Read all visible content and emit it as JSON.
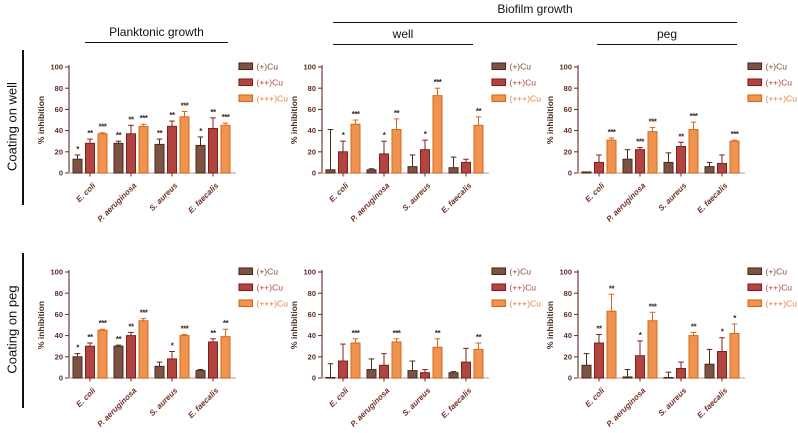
{
  "page": {
    "background": "#ffffff"
  },
  "headers": {
    "biofilm": "Biofilm growth",
    "planktonic": "Planktonic growth",
    "well": "well",
    "peg": "peg"
  },
  "row_labels": {
    "top": "Coating on well",
    "bottom": "Coating on peg"
  },
  "legend": {
    "items": [
      {
        "label": "(+)Cu",
        "fill": "#7d5242",
        "stroke": "#4a2a1c",
        "text_color": "#7d4936"
      },
      {
        "label": "(++)Cu",
        "fill": "#b24440",
        "stroke": "#7e211c",
        "text_color": "#b1433a"
      },
      {
        "label": "(+++)Cu",
        "fill": "#f0934e",
        "stroke": "#d2691e",
        "text_color": "#e2813f"
      }
    ]
  },
  "axis_style": {
    "axis_color": "#5e2c23",
    "baseline_color": "#cfaaa4",
    "tick_text_color": "#5e2c23",
    "ylabel_color": "#4f2a1f",
    "category_color": "#703326",
    "star_color": "#3a2a22"
  },
  "chart_data": [
    {
      "type": "bar",
      "coating": "Coating on well",
      "condition": "Planktonic growth",
      "ylabel": "% inhibition",
      "ylim": [
        0,
        100
      ],
      "yticks": [
        0,
        20,
        40,
        60,
        80,
        100
      ],
      "categories": [
        "E. coli",
        "P. aeruginosa",
        "S. aureus",
        "E. faecalis"
      ],
      "series": [
        {
          "name": "(+)Cu",
          "values": [
            13,
            28,
            27,
            26
          ],
          "errors": [
            4,
            2,
            5,
            8
          ],
          "sig": [
            "*",
            "**",
            "**",
            "*"
          ]
        },
        {
          "name": "(++)Cu",
          "values": [
            28,
            37,
            44,
            42
          ],
          "errors": [
            4,
            8,
            5,
            10
          ],
          "sig": [
            "**",
            "**",
            "**",
            "**"
          ]
        },
        {
          "name": "(+++)Cu",
          "values": [
            37,
            44,
            53,
            45
          ],
          "errors": [
            1,
            2,
            5,
            2
          ],
          "sig": [
            "***",
            "***",
            "***",
            "***"
          ]
        }
      ]
    },
    {
      "type": "bar",
      "coating": "Coating on well",
      "condition": "Biofilm growth - well",
      "ylabel": "% inhibition",
      "ylim": [
        0,
        100
      ],
      "yticks": [
        0,
        20,
        40,
        60,
        80,
        100
      ],
      "categories": [
        "E. coli",
        "P. aeruginosa",
        "S. aureus",
        "E. faecalis"
      ],
      "series": [
        {
          "name": "(+)Cu",
          "values": [
            3,
            3,
            6,
            5
          ],
          "errors": [
            38,
            1,
            11,
            10
          ],
          "sig": [
            "",
            "",
            "",
            ""
          ]
        },
        {
          "name": "(++)Cu",
          "values": [
            20,
            18,
            22,
            10
          ],
          "errors": [
            10,
            12,
            9,
            3
          ],
          "sig": [
            "*",
            "*",
            "*",
            ""
          ]
        },
        {
          "name": "(+++)Cu",
          "values": [
            46,
            41,
            73,
            45
          ],
          "errors": [
            4,
            10,
            7,
            8
          ],
          "sig": [
            "***",
            "**",
            "***",
            "**"
          ]
        }
      ]
    },
    {
      "type": "bar",
      "coating": "Coating on well",
      "condition": "Biofilm growth - peg",
      "ylabel": "% inhibition",
      "ylim": [
        0,
        100
      ],
      "yticks": [
        0,
        20,
        40,
        60,
        80,
        100
      ],
      "categories": [
        "E. coli",
        "P. aeruginosa",
        "S. aureus",
        "E. faecalis"
      ],
      "series": [
        {
          "name": "(+)Cu",
          "values": [
            1,
            13,
            10,
            6
          ],
          "errors": [
            0,
            9,
            9,
            4
          ],
          "sig": [
            "",
            "",
            "",
            ""
          ]
        },
        {
          "name": "(++)Cu",
          "values": [
            10,
            22,
            25,
            9
          ],
          "errors": [
            7,
            2,
            4,
            8
          ],
          "sig": [
            "",
            "***",
            "**",
            ""
          ]
        },
        {
          "name": "(+++)Cu",
          "values": [
            31,
            39,
            41,
            30
          ],
          "errors": [
            2,
            4,
            7,
            1
          ],
          "sig": [
            "***",
            "***",
            "***",
            "***"
          ]
        }
      ]
    },
    {
      "type": "bar",
      "coating": "Coating on peg",
      "condition": "Planktonic growth",
      "ylabel": "% inhibition",
      "ylim": [
        0,
        100
      ],
      "yticks": [
        0,
        20,
        40,
        60,
        80,
        100
      ],
      "categories": [
        "E. coli",
        "P. aeruginosa",
        "S. aureus",
        "E. faecalis"
      ],
      "series": [
        {
          "name": "(+)Cu",
          "values": [
            20,
            30,
            11,
            7
          ],
          "errors": [
            3,
            1,
            4,
            1
          ],
          "sig": [
            "*",
            "**",
            "",
            ""
          ]
        },
        {
          "name": "(++)Cu",
          "values": [
            30,
            40,
            18,
            34
          ],
          "errors": [
            3,
            3,
            7,
            3
          ],
          "sig": [
            "**",
            "**",
            "*",
            "**"
          ]
        },
        {
          "name": "(+++)Cu",
          "values": [
            45,
            54,
            40,
            39
          ],
          "errors": [
            1,
            2,
            1,
            7
          ],
          "sig": [
            "***",
            "***",
            "***",
            "**"
          ]
        }
      ]
    },
    {
      "type": "bar",
      "coating": "Coating on peg",
      "condition": "Biofilm growth - well",
      "ylabel": "% inhibition",
      "ylim": [
        0,
        100
      ],
      "yticks": [
        0,
        20,
        40,
        60,
        80,
        100
      ],
      "categories": [
        "E. coli",
        "P. aeruginosa",
        "S. aureus",
        "E. faecalis"
      ],
      "series": [
        {
          "name": "(+)Cu",
          "values": [
            0.5,
            8,
            7,
            5
          ],
          "errors": [
            13,
            10,
            9,
            1
          ],
          "sig": [
            "",
            "",
            "",
            ""
          ]
        },
        {
          "name": "(++)Cu",
          "values": [
            16,
            12,
            5,
            15
          ],
          "errors": [
            16,
            11,
            3,
            13
          ],
          "sig": [
            "",
            "",
            "",
            ""
          ]
        },
        {
          "name": "(+++)Cu",
          "values": [
            33,
            34,
            29,
            27
          ],
          "errors": [
            4,
            3,
            8,
            6
          ],
          "sig": [
            "***",
            "***",
            "**",
            "**"
          ]
        }
      ]
    },
    {
      "type": "bar",
      "coating": "Coating on peg",
      "condition": "Biofilm growth - peg",
      "ylabel": "% inhibition",
      "ylim": [
        0,
        100
      ],
      "yticks": [
        0,
        20,
        40,
        60,
        80,
        100
      ],
      "categories": [
        "E. coli",
        "P. aeruginosa",
        "S. aureus",
        "E. faecalis"
      ],
      "series": [
        {
          "name": "(+)Cu",
          "values": [
            12,
            1,
            0.5,
            13
          ],
          "errors": [
            11,
            7,
            5,
            14
          ],
          "sig": [
            "",
            "",
            "",
            ""
          ]
        },
        {
          "name": "(++)Cu",
          "values": [
            33,
            21,
            9,
            25
          ],
          "errors": [
            8,
            14,
            6,
            13
          ],
          "sig": [
            "**",
            "*",
            "",
            "*"
          ]
        },
        {
          "name": "(+++)Cu",
          "values": [
            63,
            54,
            40,
            42
          ],
          "errors": [
            16,
            8,
            3,
            9
          ],
          "sig": [
            "**",
            "***",
            "**",
            "*"
          ]
        }
      ]
    }
  ]
}
